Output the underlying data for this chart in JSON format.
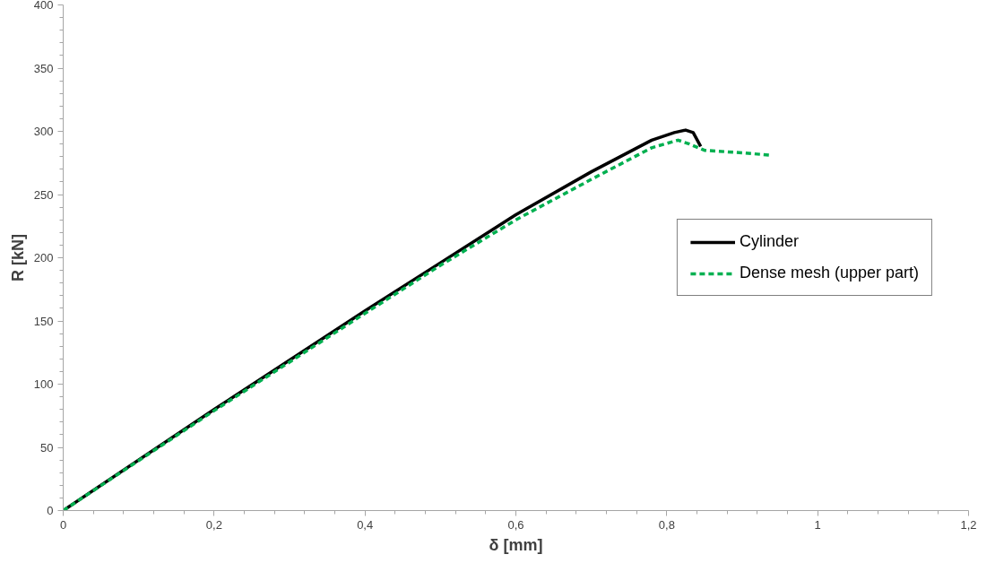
{
  "chart_data": {
    "type": "line",
    "xlabel": "δ [mm]",
    "ylabel": "R [kN]",
    "xlim": [
      0,
      1.2
    ],
    "ylim": [
      0,
      400
    ],
    "xticks": [
      0,
      {
        "value": 0.2,
        "label": "0,2"
      },
      {
        "value": 0.4,
        "label": "0,4"
      },
      {
        "value": 0.6,
        "label": "0,6"
      },
      {
        "value": 0.8,
        "label": "0,8"
      },
      1,
      {
        "value": 1.2,
        "label": "1,2"
      }
    ],
    "yticks": [
      0,
      50,
      100,
      150,
      200,
      250,
      300,
      350,
      400
    ],
    "grid": false,
    "legend": "right",
    "series": [
      {
        "name": "Cylinder",
        "color": "#000000",
        "line_style": "solid",
        "x": [
          0,
          0.2,
          0.4,
          0.5,
          0.6,
          0.7,
          0.78,
          0.81,
          0.825,
          0.835,
          0.845
        ],
        "values": [
          0,
          80,
          158,
          196,
          234,
          268,
          293,
          299,
          301,
          299,
          288
        ]
      },
      {
        "name": "Dense mesh (upper part)",
        "color": "#00b050",
        "line_style": "dashed",
        "x": [
          0,
          0.2,
          0.4,
          0.5,
          0.6,
          0.7,
          0.78,
          0.815,
          0.83,
          0.85,
          0.9,
          0.94
        ],
        "values": [
          0,
          79,
          156,
          194,
          230,
          262,
          287,
          293,
          290,
          285,
          283,
          281
        ]
      }
    ]
  }
}
